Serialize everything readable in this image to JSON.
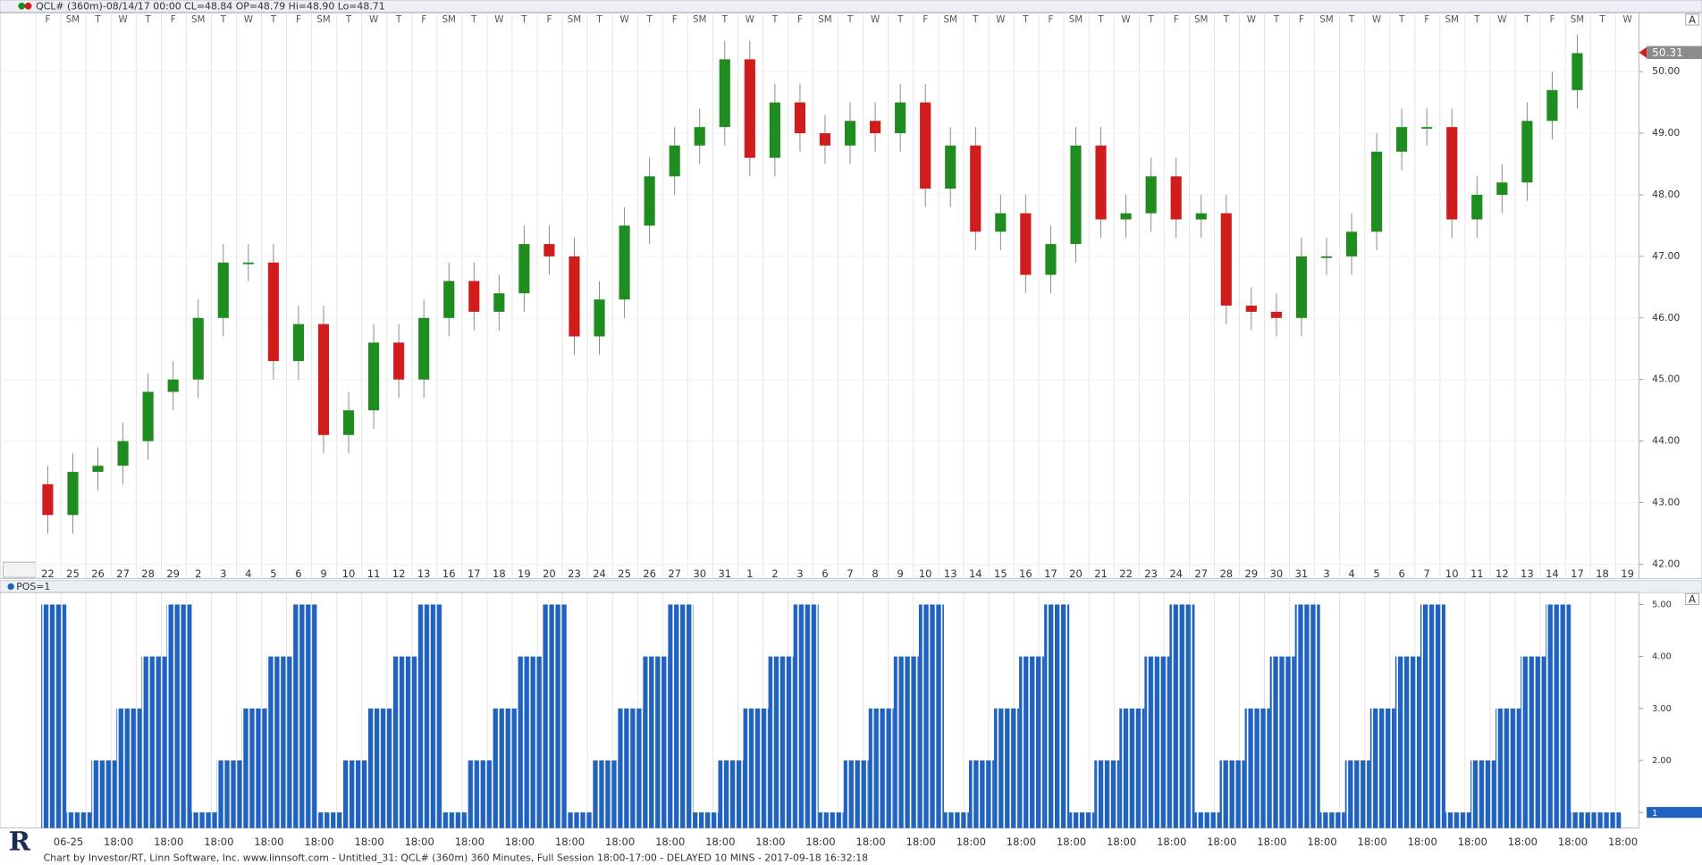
{
  "chart_data": [
    {
      "type": "candlestick",
      "title": "QCL# (360m)-08/14/17 00:00 CL=48.84 OP=48.79 Hi=48.90 Lo=48.71",
      "categories": [
        "22",
        "25",
        "26",
        "27",
        "28",
        "29",
        "2",
        "3",
        "4",
        "5",
        "6",
        "9",
        "10",
        "11",
        "12",
        "13",
        "16",
        "17",
        "18",
        "19",
        "20",
        "23",
        "24",
        "25",
        "26",
        "27",
        "30",
        "31",
        "1",
        "2",
        "3",
        "6",
        "7",
        "8",
        "9",
        "10",
        "13",
        "14",
        "15",
        "16",
        "17",
        "20",
        "21",
        "22",
        "23",
        "24",
        "27",
        "28",
        "29",
        "30",
        "31",
        "3",
        "4",
        "5",
        "6",
        "7",
        "10",
        "11",
        "12",
        "13",
        "14",
        "17",
        "18",
        "19"
      ],
      "weekdays": [
        "F",
        "SM",
        "T",
        "W",
        "T",
        "F",
        "SM",
        "T",
        "W",
        "T",
        "F",
        "SM",
        "T",
        "W",
        "T",
        "F",
        "SM",
        "T",
        "W",
        "T",
        "F",
        "SM",
        "T",
        "W",
        "T",
        "F",
        "SM",
        "T",
        "W",
        "T",
        "F",
        "SM",
        "T",
        "W",
        "T",
        "F",
        "SM",
        "T",
        "W",
        "T",
        "F",
        "SM",
        "T",
        "W",
        "T",
        "F",
        "SM",
        "T",
        "W",
        "T",
        "F",
        "SM",
        "T",
        "W",
        "T",
        "F",
        "SM",
        "T",
        "W",
        "T",
        "F",
        "SM",
        "T",
        "W"
      ],
      "open": [
        43.3,
        42.8,
        43.5,
        43.6,
        44.0,
        44.8,
        45.0,
        46.0,
        46.9,
        46.9,
        45.3,
        45.9,
        44.1,
        44.5,
        45.6,
        45.0,
        46.0,
        46.6,
        46.1,
        46.4,
        47.2,
        47.0,
        45.7,
        46.3,
        47.5,
        48.3,
        48.8,
        49.1,
        50.2,
        48.6,
        49.5,
        49.0,
        48.8,
        49.2,
        49.0,
        49.5,
        48.1,
        48.8,
        47.4,
        47.7,
        46.7,
        47.2,
        48.8,
        47.6,
        47.7,
        48.3,
        47.6,
        47.7,
        46.2,
        46.1,
        46.0,
        47.0,
        47.0,
        47.4,
        48.7,
        49.1,
        49.1,
        47.6,
        48.0,
        48.2,
        49.2,
        49.7,
        null,
        null
      ],
      "high": [
        43.6,
        43.8,
        43.9,
        44.3,
        45.1,
        45.3,
        46.3,
        47.2,
        47.2,
        47.2,
        46.2,
        46.2,
        44.8,
        45.9,
        45.9,
        46.3,
        46.9,
        46.9,
        46.7,
        47.5,
        47.5,
        47.3,
        46.6,
        47.8,
        48.6,
        49.1,
        49.4,
        50.5,
        50.5,
        49.8,
        49.8,
        49.3,
        49.5,
        49.5,
        49.8,
        49.8,
        49.1,
        49.1,
        48.0,
        48.0,
        47.5,
        49.1,
        49.1,
        48.0,
        48.6,
        48.6,
        48.0,
        48.0,
        46.5,
        46.4,
        47.3,
        47.3,
        47.7,
        49.0,
        49.4,
        49.4,
        49.4,
        48.3,
        48.5,
        49.5,
        50.0,
        50.6,
        null,
        null
      ],
      "low": [
        42.5,
        42.5,
        43.2,
        43.3,
        43.7,
        44.5,
        44.7,
        45.7,
        46.6,
        45.0,
        45.0,
        43.8,
        43.8,
        44.2,
        44.7,
        44.7,
        45.7,
        45.8,
        45.8,
        46.1,
        46.7,
        45.4,
        45.4,
        46.0,
        47.2,
        48.0,
        48.5,
        48.8,
        48.3,
        48.3,
        48.7,
        48.5,
        48.5,
        48.7,
        48.7,
        47.8,
        47.8,
        47.1,
        47.1,
        46.4,
        46.4,
        46.9,
        47.3,
        47.3,
        47.4,
        47.3,
        47.3,
        45.9,
        45.8,
        45.7,
        45.7,
        46.7,
        46.7,
        47.1,
        48.4,
        48.8,
        47.3,
        47.3,
        47.7,
        47.9,
        48.9,
        49.4,
        null,
        null
      ],
      "close": [
        42.8,
        43.5,
        43.6,
        44.0,
        44.8,
        45.0,
        46.0,
        46.9,
        46.9,
        45.3,
        45.9,
        44.1,
        44.5,
        45.6,
        45.0,
        46.0,
        46.6,
        46.1,
        46.4,
        47.2,
        47.0,
        45.7,
        46.3,
        47.5,
        48.3,
        48.8,
        49.1,
        50.2,
        48.6,
        49.5,
        49.0,
        48.8,
        49.2,
        49.0,
        49.5,
        48.1,
        48.8,
        47.4,
        47.7,
        46.7,
        47.2,
        48.8,
        47.6,
        47.7,
        48.3,
        47.6,
        47.7,
        46.2,
        46.1,
        46.0,
        47.0,
        47.0,
        47.4,
        48.7,
        49.1,
        49.1,
        47.6,
        48.0,
        48.2,
        49.2,
        49.7,
        50.3,
        null,
        null
      ],
      "up_color": "#1e8c1e",
      "down_color": "#d01c1c",
      "ylim": [
        41.77,
        50.95
      ],
      "yticks": [
        {
          "value": 42,
          "label": "42.00"
        },
        {
          "value": 43,
          "label": "43.00"
        },
        {
          "value": 44,
          "label": "44.00"
        },
        {
          "value": 45,
          "label": "45.00"
        },
        {
          "value": 46,
          "label": "46.00"
        },
        {
          "value": 47,
          "label": "47.00"
        },
        {
          "value": 48,
          "label": "48.00"
        },
        {
          "value": 49,
          "label": "49.00"
        },
        {
          "value": 50,
          "label": "50.00"
        }
      ],
      "last_price": 50.31,
      "grid": true,
      "scale_button": "A"
    },
    {
      "type": "bar",
      "title": "POS=1",
      "values": [
        5,
        1,
        2,
        3,
        4,
        5,
        1,
        2,
        3,
        4,
        5,
        1,
        2,
        3,
        4,
        5,
        1,
        2,
        3,
        4,
        5,
        1,
        2,
        3,
        4,
        5,
        1,
        2,
        3,
        4,
        5,
        1,
        2,
        3,
        4,
        5,
        1,
        2,
        3,
        4,
        5,
        1,
        2,
        3,
        4,
        5,
        1,
        2,
        3,
        4,
        5,
        1,
        2,
        3,
        4,
        5,
        1,
        2,
        3,
        4,
        5,
        1,
        1,
        null
      ],
      "x_labels": [
        "06-25",
        "18:00",
        "18:00",
        "18:00",
        "18:00",
        "18:00",
        "18:00",
        "18:00",
        "18:00",
        "18:00",
        "18:00",
        "18:00",
        "18:00",
        "18:00",
        "18:00",
        "18:00",
        "18:00",
        "18:00",
        "18:00",
        "18:00",
        "18:00",
        "18:00",
        "18:00",
        "18:00",
        "18:00",
        "18:00",
        "18:00",
        "18:00",
        "18:00",
        "18:00",
        "18:00",
        "18:00"
      ],
      "color": "#1f62c0",
      "ylim": [
        0.7,
        5.23
      ],
      "yticks": [
        {
          "value": 1,
          "label": "1.00"
        },
        {
          "value": 2,
          "label": "2.00"
        },
        {
          "value": 3,
          "label": "3.00"
        },
        {
          "value": 4,
          "label": "4.00"
        },
        {
          "value": 5,
          "label": "5.00"
        }
      ],
      "last_value": 1,
      "scale_button": "A"
    }
  ],
  "footer": "Chart by Investor/RT, Linn Software, Inc. www.linnsoft.com - Untitled_31: QCL# (360m) 360 Minutes, Full Session 18:00-17:00 - DELAYED 10 MINS - 2017-09-18 16:32:18"
}
